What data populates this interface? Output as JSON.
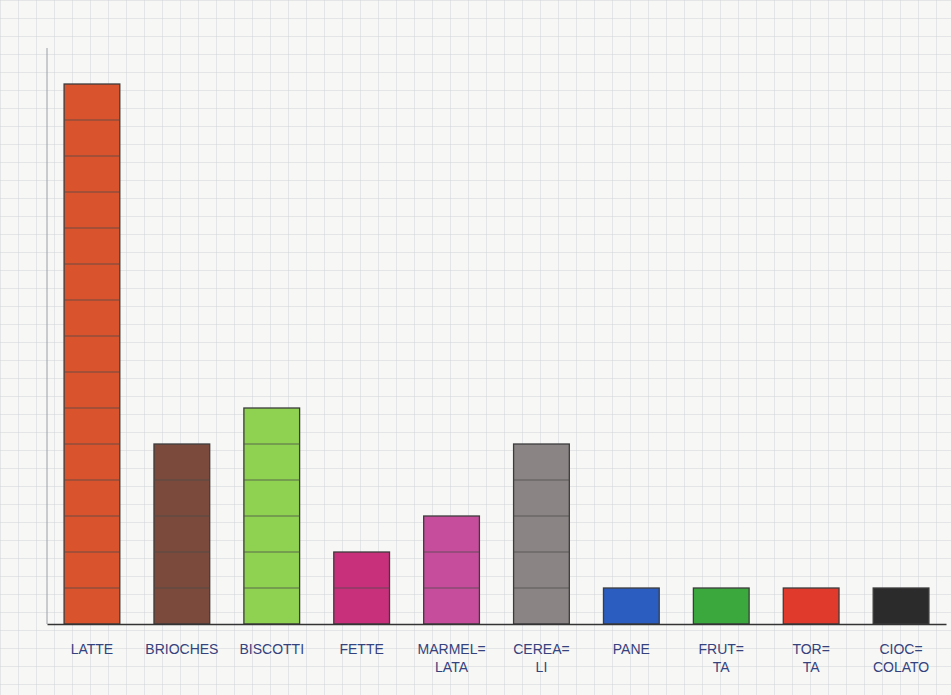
{
  "chart_data": {
    "type": "bar",
    "categories": [
      "LATTE",
      "BRIOCHES",
      "BISCOTTI",
      "FETTE",
      "MARMEL= LATA",
      "CEREA= LI",
      "PANE",
      "FRUT= TA",
      "TOR= TA",
      "CIOC= COLATO"
    ],
    "values": [
      15,
      5,
      6,
      2,
      3,
      5,
      1,
      1,
      1,
      1
    ],
    "colors": [
      "#d9532c",
      "#7b4a3c",
      "#8fd150",
      "#c8307c",
      "#c64d9c",
      "#8a8584",
      "#2b5cc0",
      "#3aa83c",
      "#e03a2c",
      "#2b2b2b"
    ],
    "ylim": [
      0,
      16
    ],
    "tick_labels": "x"
  }
}
